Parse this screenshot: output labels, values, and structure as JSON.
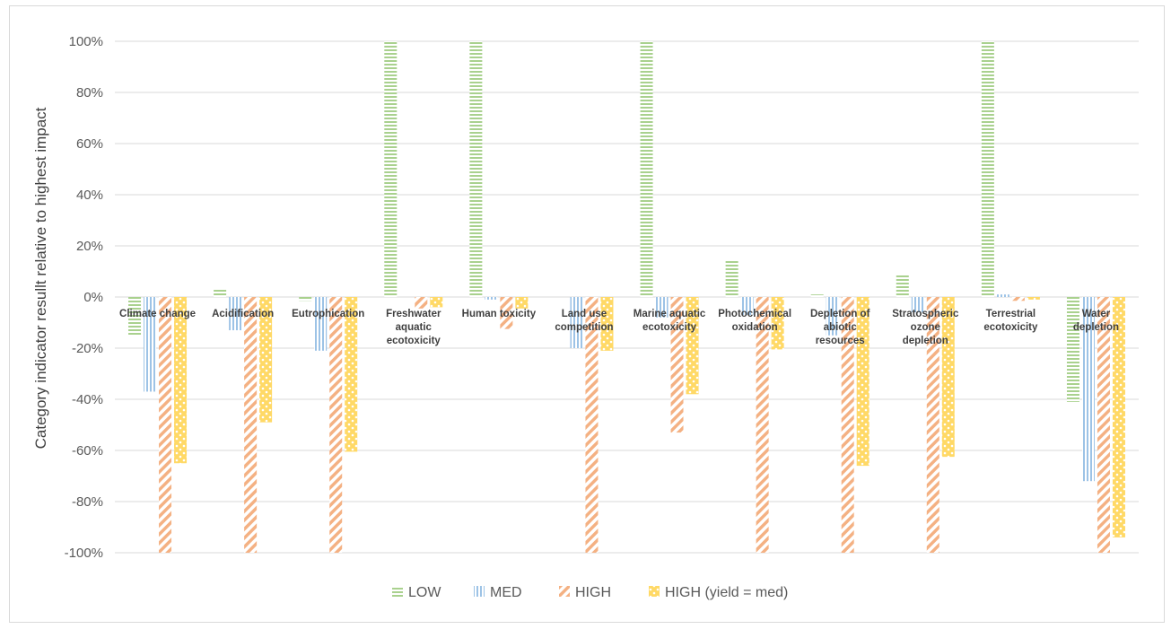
{
  "chart_data": {
    "type": "bar",
    "title": "",
    "xlabel": "",
    "ylabel": "Category indicator resullt relative to highest impact",
    "ylim": [
      -100,
      100
    ],
    "yticks": [
      100,
      80,
      60,
      40,
      20,
      0,
      -20,
      -40,
      -60,
      -80,
      -100
    ],
    "ytick_labels": [
      "100%",
      "80%",
      "60%",
      "40%",
      "20%",
      "0%",
      "-20%",
      "-40%",
      "-60%",
      "-80%",
      "-100%"
    ],
    "grid": true,
    "legend_position": "bottom",
    "categories": [
      [
        "Climate change"
      ],
      [
        "Acidification"
      ],
      [
        "Eutrophication"
      ],
      [
        "Freshwater",
        "aquatic",
        "ecotoxicity"
      ],
      [
        "Human toxicity"
      ],
      [
        "Land use",
        "competition"
      ],
      [
        "Marine aquatic",
        "ecotoxicity"
      ],
      [
        "Photochemical",
        "oxidation"
      ],
      [
        "Depletion of",
        "abiotic",
        "resources"
      ],
      [
        "Stratospheric",
        "ozone",
        "depletion"
      ],
      [
        "Terrestrial",
        "ecotoxicity"
      ],
      [
        "Water",
        "depletion"
      ]
    ],
    "series": [
      {
        "name": "LOW",
        "color": "#a9d18e",
        "pattern": "horizontal-stripes",
        "values": [
          -15,
          3,
          -1.5,
          100,
          100,
          0,
          100,
          14.5,
          1,
          9,
          100,
          -41
        ]
      },
      {
        "name": "MED",
        "color": "#9dc3e6",
        "pattern": "vertical-stripes",
        "values": [
          -37,
          -13,
          -21,
          0,
          -1,
          -20,
          -8,
          -7,
          -15,
          -6,
          1,
          -72
        ]
      },
      {
        "name": "HIGH",
        "color": "#f4b183",
        "pattern": "diagonal-stripes",
        "values": [
          -100,
          -100,
          -100,
          -4.5,
          -12.5,
          -100,
          -53,
          -100,
          -100,
          -100,
          -1.5,
          -100
        ]
      },
      {
        "name": "HIGH (yield = med)",
        "color": "#ffd966",
        "pattern": "dots",
        "values": [
          -65,
          -49,
          -60.5,
          -4,
          -4.5,
          -21,
          -38,
          -20.5,
          -66,
          -62.5,
          -1,
          -94
        ]
      }
    ]
  }
}
